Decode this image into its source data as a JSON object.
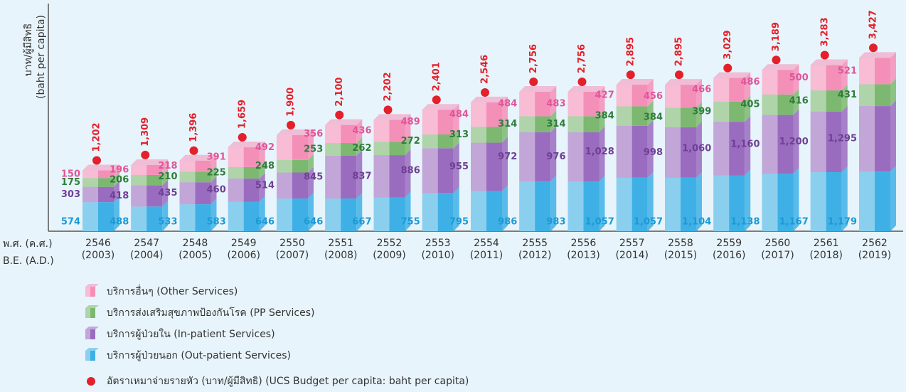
{
  "chart_data": {
    "type": "stacked-bar",
    "y_axis_label": [
      "บาท/ผู้มีสิทธิ",
      "(baht per capita)"
    ],
    "x_axis_label": [
      "พ.ศ. (ค.ศ.)",
      "B.E. (A.D.)"
    ],
    "categories": [
      "2546",
      "2547",
      "2548",
      "2549",
      "2550",
      "2551",
      "2552",
      "2553",
      "2554",
      "2555",
      "2556",
      "2557",
      "2558",
      "2559",
      "2560",
      "2561",
      "2562"
    ],
    "categories_ad": [
      "(2003)",
      "(2004)",
      "(2005)",
      "(2006)",
      "(2007)",
      "(2008)",
      "(2009)",
      "(2010)",
      "(2011)",
      "(2012)",
      "(2013)",
      "(2014)",
      "(2015)",
      "(2016)",
      "(2017)",
      "(2018)",
      "(2019)"
    ],
    "ylim": [
      0,
      4500
    ],
    "series": [
      {
        "name": "บริการผู้ป่วยนอก (Out-patient Services)",
        "color": "#3fb0e5",
        "label_color": "#1a9ad6",
        "values": [
          574,
          488,
          533,
          583,
          646,
          646,
          667,
          755,
          795,
          986,
          983,
          1057,
          1057,
          1104,
          1138,
          1167,
          1179
        ],
        "value_labels": [
          "574",
          "488",
          "533",
          "583",
          "646",
          "646",
          "667",
          "755",
          "795",
          "986",
          "983",
          "1,057",
          "1,057",
          "1,104",
          "1,138",
          "1,167",
          "1,179"
        ]
      },
      {
        "name": "บริการผู้ป่วยใน (In-patient Services)",
        "color": "#9a6cbf",
        "label_color": "#6f3f95",
        "values": [
          303,
          418,
          435,
          460,
          514,
          845,
          837,
          886,
          955,
          972,
          976,
          1028,
          998,
          1060,
          1160,
          1200,
          1295
        ],
        "value_labels": [
          "303",
          "418",
          "435",
          "460",
          "514",
          "845",
          "837",
          "886",
          "955",
          "972",
          "976",
          "1,028",
          "998",
          "1,060",
          "1,160",
          "1,200",
          "1,295"
        ]
      },
      {
        "name": "บริการส่งเสริมสุขภาพป้องกันโรค (PP Services)",
        "color": "#7cb870",
        "label_color": "#2e7d3a",
        "values": [
          175,
          206,
          210,
          225,
          248,
          253,
          262,
          272,
          313,
          314,
          314,
          384,
          384,
          399,
          405,
          416,
          431
        ],
        "value_labels": [
          "175",
          "206",
          "210",
          "225",
          "248",
          "253",
          "262",
          "272",
          "313",
          "314",
          "314",
          "384",
          "384",
          "399",
          "405",
          "416",
          "431"
        ]
      },
      {
        "name": "บริการอื่นๆ (Other Services)",
        "color": "#f48fb8",
        "label_color": "#e0559a",
        "values": [
          150,
          196,
          218,
          391,
          492,
          356,
          436,
          489,
          484,
          484,
          483,
          427,
          456,
          466,
          486,
          500,
          521
        ],
        "value_labels": [
          "150",
          "196",
          "218",
          "391",
          "492",
          "356",
          "436",
          "489",
          "484",
          "484",
          "483",
          "427",
          "456",
          "466",
          "486",
          "500",
          "521"
        ]
      }
    ],
    "budget": {
      "name": "อัตราเหมาจ่ายรายหัว (บาท/ผู้มีสิทธิ) (UCS Budget per capita: baht per capita)",
      "color": "#e3202b",
      "values": [
        1202,
        1309,
        1396,
        1659,
        1900,
        2100,
        2202,
        2401,
        2546,
        2756,
        2756,
        2895,
        2895,
        3029,
        3189,
        3283,
        3427
      ],
      "value_labels": [
        "1,202",
        "1,309",
        "1,396",
        "1,659",
        "1,900",
        "2,100",
        "2,202",
        "2,401",
        "2,546",
        "2,756",
        "2,756",
        "2,895",
        "2,895",
        "3,029",
        "3,189",
        "3,283",
        "3,427"
      ]
    }
  }
}
